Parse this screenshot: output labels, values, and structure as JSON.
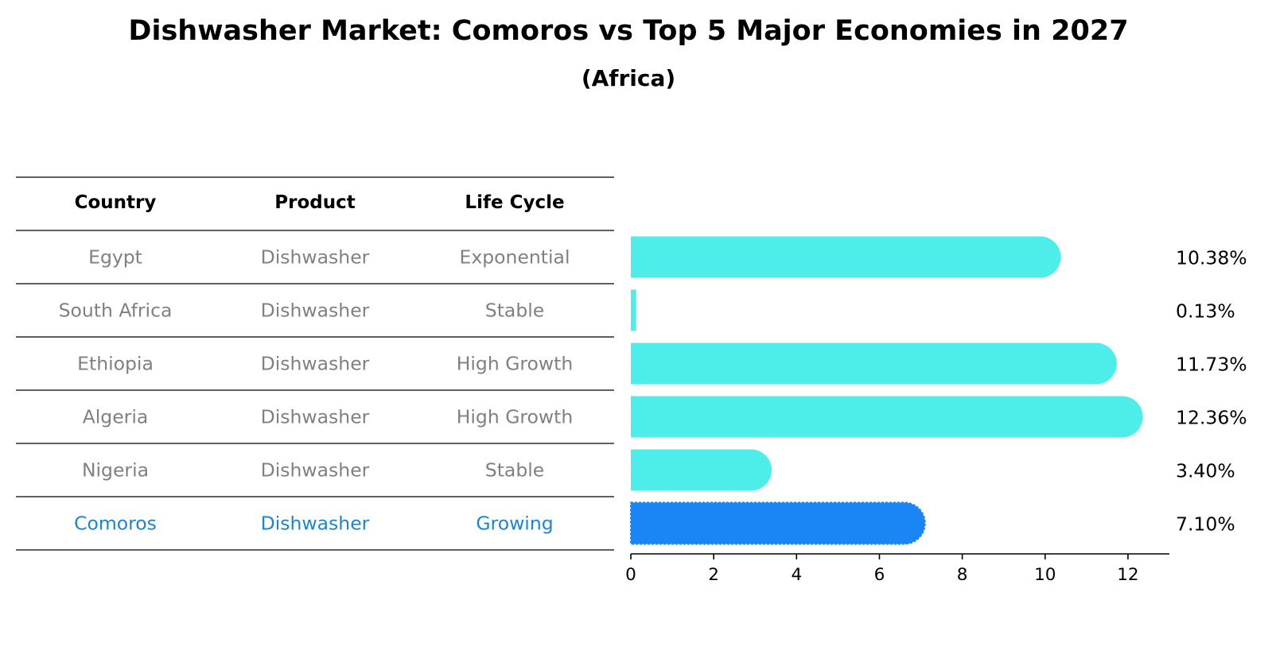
{
  "chart_data": {
    "type": "bar",
    "orientation": "horizontal",
    "title": "Dishwasher Market: Comoros vs Top 5 Major Economies in 2027",
    "subtitle": "(Africa)",
    "table_headers": [
      "Country",
      "Product",
      "Life Cycle"
    ],
    "rows": [
      {
        "country": "Egypt",
        "product": "Dishwasher",
        "life_cycle": "Exponential",
        "value": 10.38,
        "label": "10.38%",
        "highlight": false
      },
      {
        "country": "South Africa",
        "product": "Dishwasher",
        "life_cycle": "Stable",
        "value": 0.13,
        "label": "0.13%",
        "highlight": false
      },
      {
        "country": "Ethiopia",
        "product": "Dishwasher",
        "life_cycle": "High Growth",
        "value": 11.73,
        "label": "11.73%",
        "highlight": false
      },
      {
        "country": "Algeria",
        "product": "Dishwasher",
        "life_cycle": "High Growth",
        "value": 12.36,
        "label": "12.36%",
        "highlight": false
      },
      {
        "country": "Nigeria",
        "product": "Dishwasher",
        "life_cycle": "Stable",
        "value": 3.4,
        "label": "3.40%",
        "highlight": false
      },
      {
        "country": "Comoros",
        "product": "Dishwasher",
        "life_cycle": "Growing",
        "value": 7.1,
        "label": "7.10%",
        "highlight": true
      }
    ],
    "xlim": [
      0,
      13
    ],
    "xticks": [
      0,
      2,
      4,
      6,
      8,
      10,
      12
    ],
    "xtick_labels": [
      "0",
      "2",
      "4",
      "6",
      "8",
      "10",
      "12"
    ],
    "colors": {
      "bar": "#4DEEEA",
      "highlight_bar": "#1A85F5",
      "cell_text": "#808080",
      "highlight_text": "#1A85D6"
    }
  }
}
